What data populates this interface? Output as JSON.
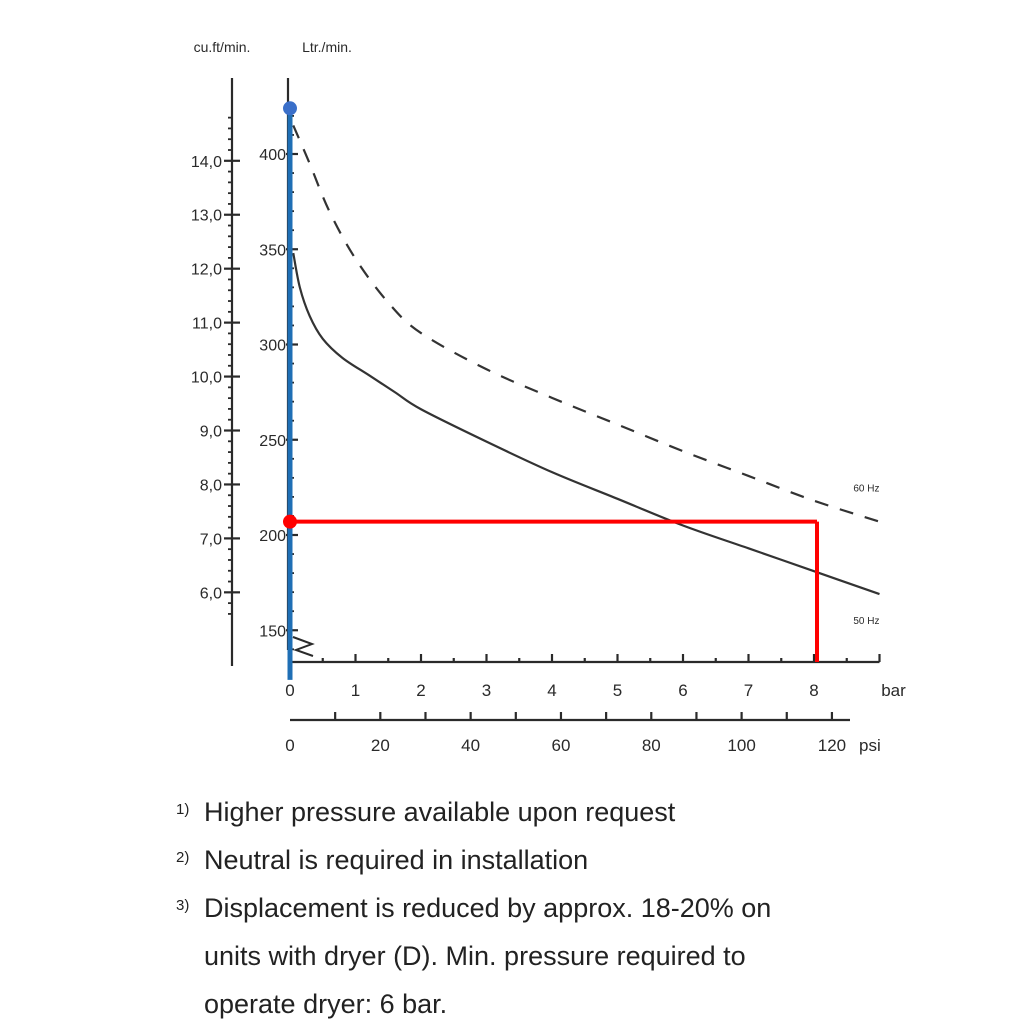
{
  "chart_data": {
    "type": "line",
    "axes": {
      "left_outer": {
        "label": "cu.ft/min.",
        "ticks": [
          "14,0",
          "13,0",
          "12,0",
          "11,0",
          "10,0",
          "9,0",
          "8,0",
          "7,0",
          "6,0"
        ],
        "values": [
          14,
          13,
          12,
          11,
          10,
          9,
          8,
          7,
          6
        ]
      },
      "left_inner": {
        "label": "Ltr./min.",
        "ticks": [
          "400",
          "350",
          "300",
          "250",
          "200",
          "150"
        ],
        "values": [
          400,
          350,
          300,
          250,
          200,
          150
        ],
        "range": [
          130,
          430
        ]
      },
      "bottom_bar": {
        "label": "bar",
        "ticks": [
          "0",
          "1",
          "2",
          "3",
          "4",
          "5",
          "6",
          "7",
          "8"
        ],
        "values": [
          0,
          1,
          2,
          3,
          4,
          5,
          6,
          7,
          8
        ],
        "range": [
          0,
          9
        ]
      },
      "bottom_psi": {
        "label": "psi",
        "ticks": [
          "0",
          "20",
          "40",
          "60",
          "80",
          "100",
          "120"
        ],
        "values": [
          0,
          20,
          40,
          60,
          80,
          100,
          120
        ]
      }
    },
    "series": [
      {
        "name": "60 Hz",
        "style": "dashed",
        "color": "#333333",
        "x": [
          0.05,
          0.3,
          0.6,
          1.0,
          1.5,
          2.0,
          3.0,
          4.0,
          5.0,
          6.0,
          7.0,
          8.0,
          9.0
        ],
        "y": [
          415,
          395,
          370,
          345,
          322,
          306,
          287,
          272,
          258,
          244,
          231,
          218,
          207
        ]
      },
      {
        "name": "50 Hz",
        "style": "solid",
        "color": "#333333",
        "x": [
          0.05,
          0.15,
          0.3,
          0.5,
          0.8,
          1.2,
          1.6,
          2.0,
          3.0,
          4.0,
          5.0,
          6.0,
          7.0,
          8.0,
          9.0
        ],
        "y": [
          348,
          330,
          315,
          303,
          293,
          284,
          275,
          266,
          249,
          233,
          219,
          205,
          193,
          181,
          169
        ]
      }
    ],
    "annotations": [
      {
        "name": "blue-vertical-marker",
        "color": "#1f6fb5",
        "x": 0,
        "y_from": 125,
        "y_to": 424,
        "dot_y": 424,
        "dot_color": "#3a6fc9"
      },
      {
        "name": "red-operating-point",
        "color": "#ff0000",
        "x": 8,
        "y": 207,
        "dot_color": "#ff0000"
      }
    ]
  },
  "notes": [
    {
      "mark": "1)",
      "lines": [
        "Higher pressure available upon request"
      ]
    },
    {
      "mark": "2)",
      "lines": [
        "Neutral is required in installation"
      ]
    },
    {
      "mark": "3)",
      "lines": [
        "Displacement is reduced by approx. 18-20% on",
        "units with dryer (D). Min. pressure required to",
        "operate dryer: 6 bar."
      ]
    }
  ],
  "colors": {
    "axis": "#2a2a2a",
    "blue": "#1f6fb5",
    "red": "#ff0000"
  }
}
